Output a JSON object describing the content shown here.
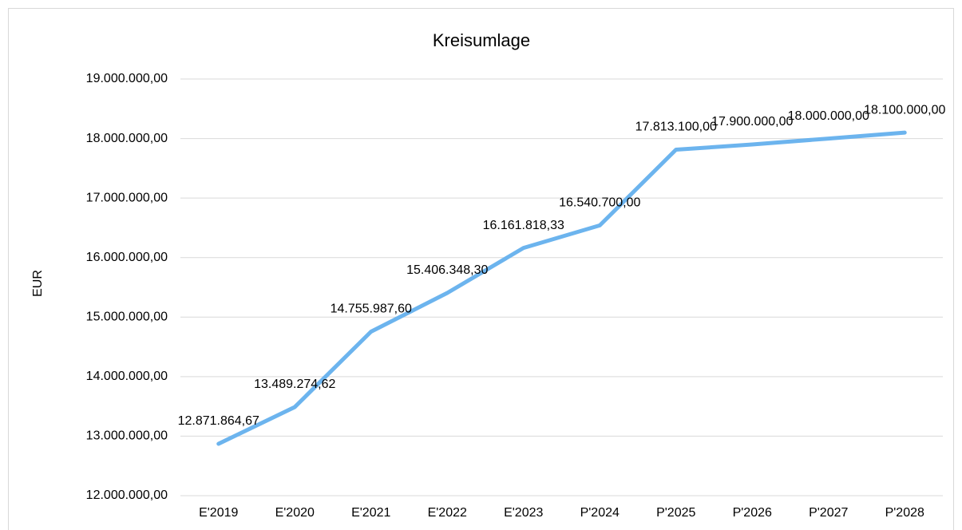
{
  "chart_data": {
    "type": "line",
    "title": "Kreisumlage",
    "y_label": "EUR",
    "categories": [
      "E'2019",
      "E'2020",
      "E'2021",
      "E'2022",
      "E'2023",
      "P'2024",
      "P'2025",
      "P'2026",
      "P'2027",
      "P'2028"
    ],
    "series": [
      {
        "name": "Kreisumlage",
        "color": "#6cb4ee",
        "values": [
          12871864.67,
          13489274.62,
          14755987.6,
          15406348.3,
          16161818.33,
          16540700.0,
          17813100.0,
          17900000.0,
          18000000.0,
          18100000.0
        ],
        "value_labels": [
          "12.871.864,67",
          "13.489.274,62",
          "14.755.987,60",
          "15.406.348,30",
          "16.161.818,33",
          "16.540.700,00",
          "17.813.100,00",
          "17.900.000,00",
          "18.000.000,00",
          "18.100.000,00"
        ]
      }
    ],
    "ylim": [
      12000000,
      19000000
    ],
    "yticks": [
      {
        "value": 12000000,
        "label": "12.000.000,00"
      },
      {
        "value": 13000000,
        "label": "13.000.000,00"
      },
      {
        "value": 14000000,
        "label": "14.000.000,00"
      },
      {
        "value": 15000000,
        "label": "15.000.000,00"
      },
      {
        "value": 16000000,
        "label": "16.000.000,00"
      },
      {
        "value": 17000000,
        "label": "17.000.000,00"
      },
      {
        "value": 18000000,
        "label": "18.000.000,00"
      },
      {
        "value": 19000000,
        "label": "19.000.000,00"
      }
    ],
    "grid": true
  }
}
